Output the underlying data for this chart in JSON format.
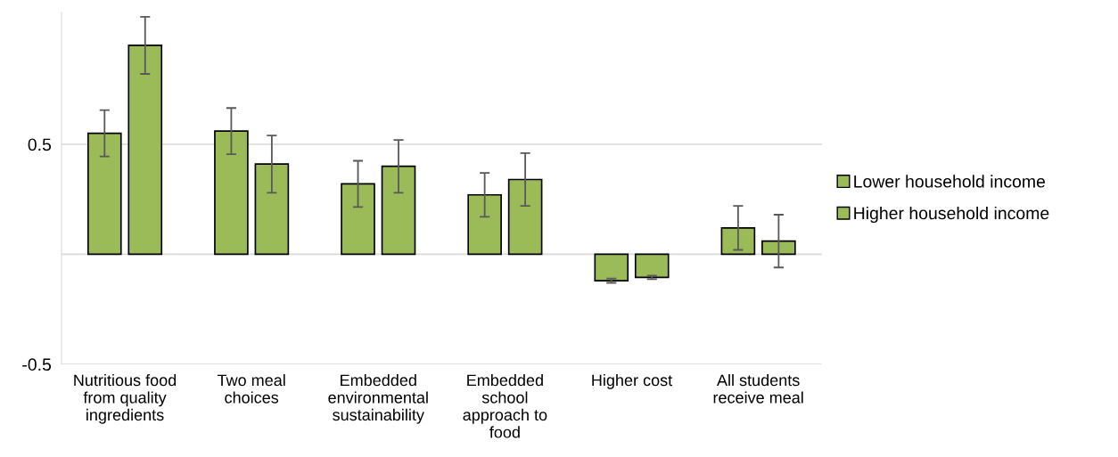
{
  "chart_data": {
    "type": "bar",
    "categories": [
      "Nutritious food\nfrom quality\ningredients",
      "Two meal\nchoices",
      "Embedded\nenvironmental\nsustainability",
      "Embedded\nschool\napproach to\nfood",
      "Higher cost",
      "All students\nreceive meal"
    ],
    "series": [
      {
        "name": "Lower household income",
        "color": "#9bbb59",
        "values": [
          0.55,
          0.56,
          0.32,
          0.27,
          -0.12,
          0.12
        ],
        "errors": [
          0.105,
          0.105,
          0.105,
          0.1,
          0.01,
          0.1
        ]
      },
      {
        "name": "Higher household income",
        "color": "#9bbb59",
        "values": [
          0.95,
          0.41,
          0.4,
          0.34,
          -0.105,
          0.06
        ],
        "errors": [
          0.13,
          0.13,
          0.12,
          0.12,
          0.008,
          0.12
        ]
      }
    ],
    "ylim": [
      -0.5,
      1.1
    ],
    "yticks": [
      -0.5,
      {
        "value": 0,
        "label": null
      },
      0.5
    ],
    "grid": "y",
    "legend": "right"
  }
}
